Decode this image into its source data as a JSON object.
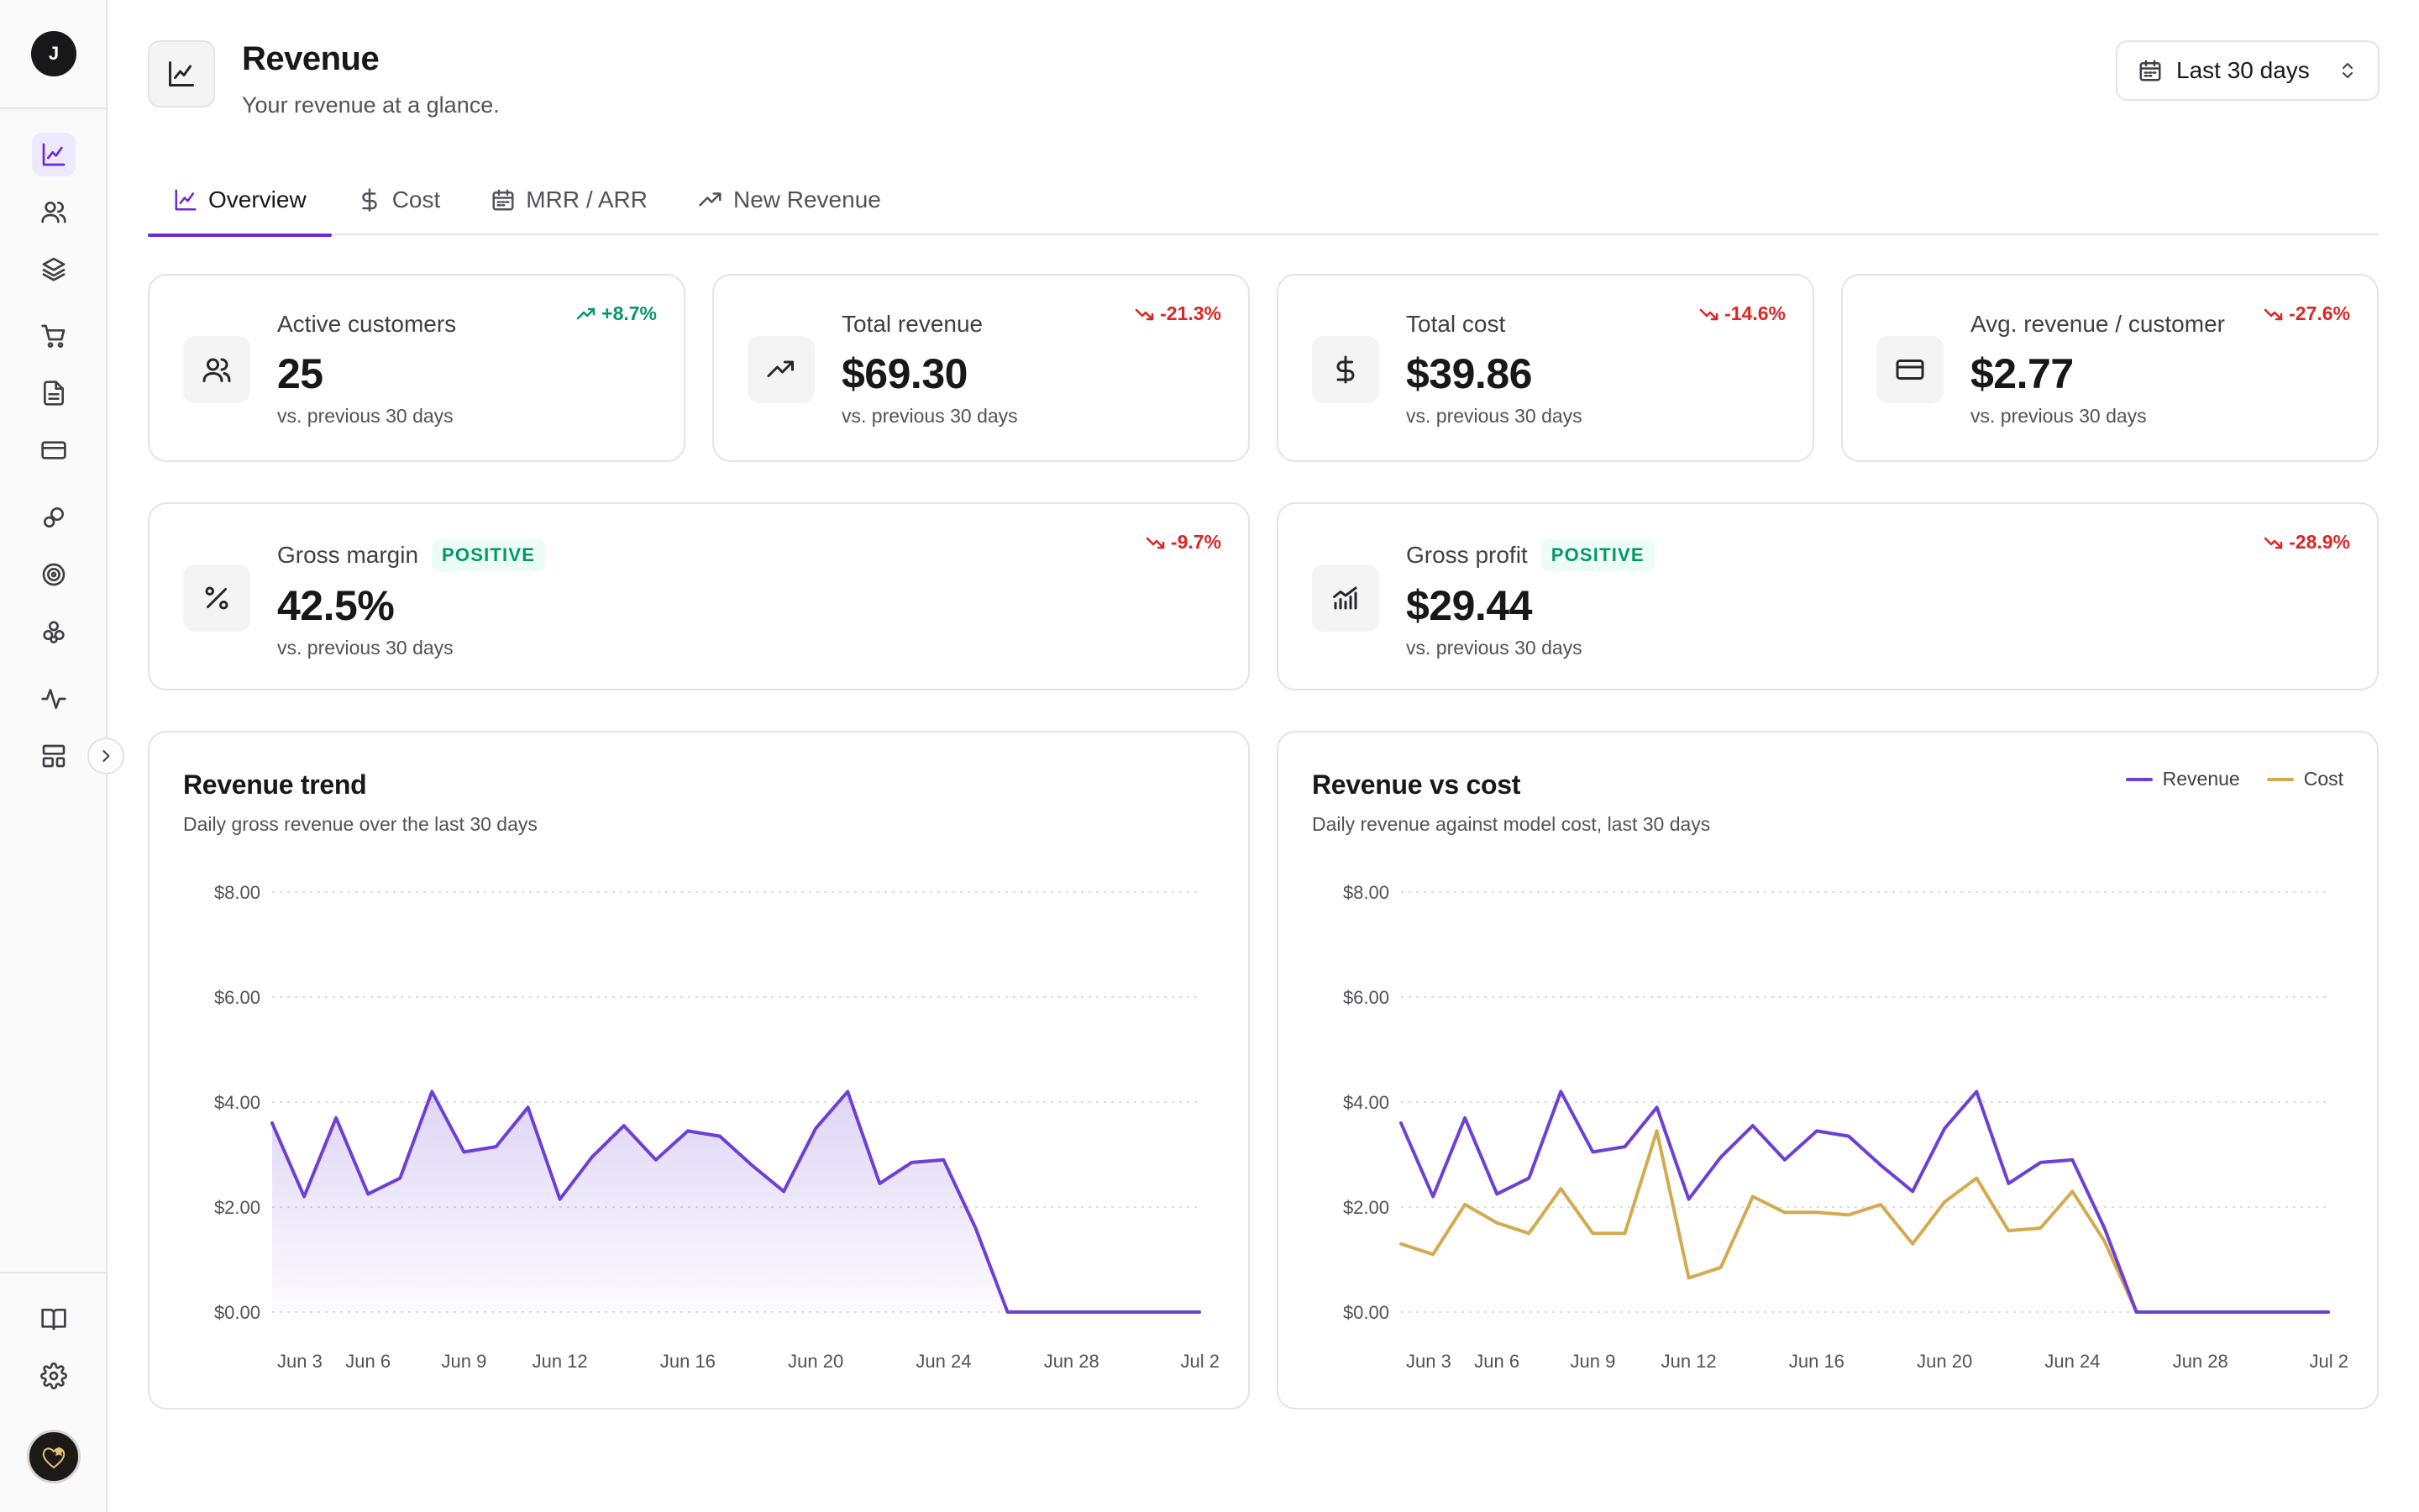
{
  "sidebar": {
    "workspace_initial": "J",
    "nav_icons": [
      "analytics-icon",
      "customers-icon",
      "layers-icon",
      "cart-icon",
      "document-icon",
      "credit-card-icon",
      "link-icon",
      "target-icon",
      "components-icon",
      "activity-icon",
      "layout-icon"
    ],
    "bottom_icons": [
      "book-icon",
      "gear-icon"
    ],
    "expand_icon": "chevron-right-icon"
  },
  "header": {
    "title": "Revenue",
    "subtitle": "Your revenue at a glance.",
    "date_range": "Last 30 days"
  },
  "tabs": [
    {
      "label": "Overview",
      "icon": "line-chart-icon",
      "active": true
    },
    {
      "label": "Cost",
      "icon": "dollar-icon",
      "active": false
    },
    {
      "label": "MRR / ARR",
      "icon": "calendar-icon",
      "active": false
    },
    {
      "label": "New Revenue",
      "icon": "trending-up-icon",
      "active": false
    }
  ],
  "stats": [
    {
      "label": "Active customers",
      "value": "25",
      "note": "vs. previous 30 days",
      "delta": "+8.7%",
      "direction": "up",
      "icon": "users-icon"
    },
    {
      "label": "Total revenue",
      "value": "$69.30",
      "note": "vs. previous 30 days",
      "delta": "-21.3%",
      "direction": "down",
      "icon": "trending-up-icon"
    },
    {
      "label": "Total cost",
      "value": "$39.86",
      "note": "vs. previous 30 days",
      "delta": "-14.6%",
      "direction": "down",
      "icon": "dollar-icon"
    },
    {
      "label": "Avg. revenue / customer",
      "value": "$2.77",
      "note": "vs. previous 30 days",
      "delta": "-27.6%",
      "direction": "down",
      "icon": "credit-card-icon"
    },
    {
      "label": "Gross margin",
      "badge": "POSITIVE",
      "value": "42.5%",
      "note": "vs. previous 30 days",
      "delta": "-9.7%",
      "direction": "down",
      "icon": "percent-icon"
    },
    {
      "label": "Gross profit",
      "badge": "POSITIVE",
      "value": "$29.44",
      "note": "vs. previous 30 days",
      "delta": "-28.9%",
      "direction": "down",
      "icon": "bar-chart-icon"
    }
  ],
  "colors": {
    "accent": "#6d28d9",
    "revenue_line": "#6d3fd6",
    "cost_line": "#d4aa4f",
    "positive": "#059669",
    "negative": "#dc2626"
  },
  "chart_data": [
    {
      "type": "area",
      "title": "Revenue trend",
      "subtitle": "Daily gross revenue over the last 30 days",
      "x": [
        "Jun 3",
        "Jun 4",
        "Jun 5",
        "Jun 6",
        "Jun 7",
        "Jun 8",
        "Jun 9",
        "Jun 10",
        "Jun 11",
        "Jun 12",
        "Jun 13",
        "Jun 14",
        "Jun 15",
        "Jun 16",
        "Jun 17",
        "Jun 18",
        "Jun 19",
        "Jun 20",
        "Jun 21",
        "Jun 22",
        "Jun 23",
        "Jun 24",
        "Jun 25",
        "Jun 26",
        "Jun 27",
        "Jun 28",
        "Jun 29",
        "Jun 30",
        "Jul 1",
        "Jul 2"
      ],
      "x_tick_labels": [
        "Jun 3",
        "Jun 6",
        "Jun 9",
        "Jun 12",
        "Jun 16",
        "Jun 20",
        "Jun 24",
        "Jun 28",
        "Jul 2"
      ],
      "x_tick_dates": [
        "Jun 3",
        "Jun 6",
        "Jun 9",
        "Jun 12",
        "Jun 16",
        "Jun 20",
        "Jun 24",
        "Jun 28",
        "Jul 2"
      ],
      "y_tick_labels": [
        "$8.00",
        "$6.00",
        "$4.00",
        "$2.00",
        "$0.00"
      ],
      "ylim": [
        0,
        8
      ],
      "grid": true,
      "series": [
        {
          "values": [
            3.6,
            2.2,
            3.7,
            2.25,
            2.55,
            4.2,
            3.05,
            3.15,
            3.9,
            2.15,
            2.95,
            3.55,
            2.9,
            3.45,
            3.35,
            2.8,
            2.3,
            3.5,
            4.2,
            2.45,
            2.85,
            2.9,
            1.6,
            0,
            0,
            0,
            0,
            0,
            0,
            0
          ]
        }
      ]
    },
    {
      "type": "line",
      "title": "Revenue vs cost",
      "subtitle": "Daily revenue against model cost, last 30 days",
      "x": [
        "Jun 3",
        "Jun 4",
        "Jun 5",
        "Jun 6",
        "Jun 7",
        "Jun 8",
        "Jun 9",
        "Jun 10",
        "Jun 11",
        "Jun 12",
        "Jun 13",
        "Jun 14",
        "Jun 15",
        "Jun 16",
        "Jun 17",
        "Jun 18",
        "Jun 19",
        "Jun 20",
        "Jun 21",
        "Jun 22",
        "Jun 23",
        "Jun 24",
        "Jun 25",
        "Jun 26",
        "Jun 27",
        "Jun 28",
        "Jun 29",
        "Jun 30",
        "Jul 1",
        "Jul 2"
      ],
      "x_tick_labels": [
        "Jun 3",
        "Jun 6",
        "Jun 9",
        "Jun 12",
        "Jun 16",
        "Jun 20",
        "Jun 24",
        "Jun 28",
        "Jul 2"
      ],
      "x_tick_dates": [
        "Jun 3",
        "Jun 6",
        "Jun 9",
        "Jun 12",
        "Jun 16",
        "Jun 20",
        "Jun 24",
        "Jun 28",
        "Jul 2"
      ],
      "y_tick_labels": [
        "$8.00",
        "$6.00",
        "$4.00",
        "$2.00",
        "$0.00"
      ],
      "ylim": [
        0,
        8
      ],
      "grid": true,
      "legend": "top-right",
      "series": [
        {
          "name": "Revenue",
          "values": [
            3.6,
            2.2,
            3.7,
            2.25,
            2.55,
            4.2,
            3.05,
            3.15,
            3.9,
            2.15,
            2.95,
            3.55,
            2.9,
            3.45,
            3.35,
            2.8,
            2.3,
            3.5,
            4.2,
            2.45,
            2.85,
            2.9,
            1.6,
            0,
            0,
            0,
            0,
            0,
            0,
            0
          ]
        },
        {
          "name": "Cost",
          "values": [
            1.3,
            1.1,
            2.05,
            1.7,
            1.5,
            2.35,
            1.5,
            1.5,
            3.45,
            0.65,
            0.85,
            2.2,
            1.9,
            1.9,
            1.85,
            2.05,
            1.3,
            2.1,
            2.55,
            1.55,
            1.6,
            2.3,
            1.35,
            0,
            0,
            0,
            0,
            0,
            0,
            0
          ]
        }
      ]
    }
  ]
}
